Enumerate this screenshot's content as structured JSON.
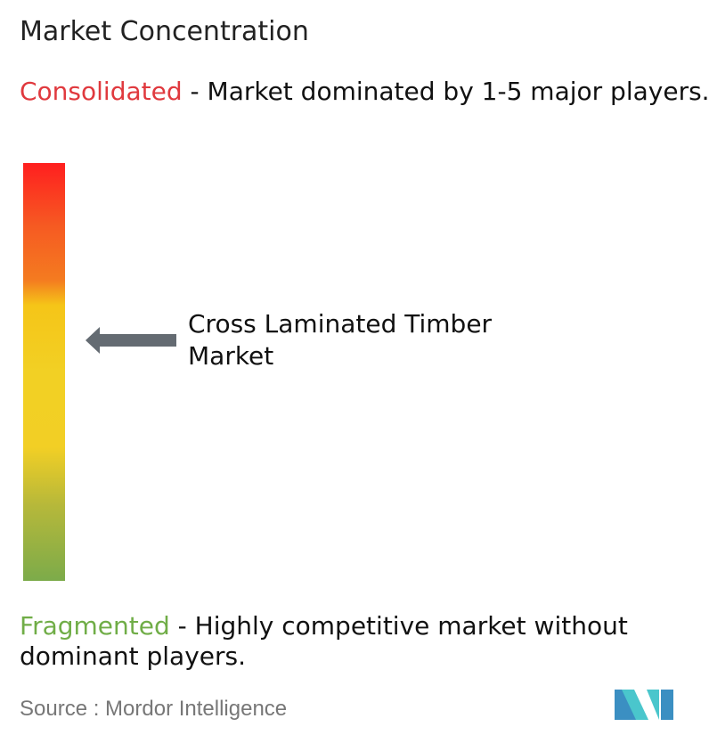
{
  "title": "Market Concentration",
  "consolidated": {
    "label": "Consolidated",
    "description": " - Market dominated by 1-5 major players.",
    "color": "#e0393e"
  },
  "fragmented": {
    "label": "Fragmented",
    "description": " - Highly competitive market without dominant players.",
    "color": "#70ad47"
  },
  "scale": {
    "gradient_colors": [
      "#ff1f1f",
      "#f47b20",
      "#f5c518",
      "#f2d024",
      "#7cab4a"
    ]
  },
  "marker": {
    "label": "Cross Laminated Timber Market",
    "arrow_color": "#646b72",
    "icon": "arrow-left-icon"
  },
  "source": {
    "text": "Source :  Mordor Intelligence"
  },
  "logo": {
    "text": "Mordor Intelligence",
    "colors": [
      "#3b8fc2",
      "#4ac6cc"
    ]
  }
}
